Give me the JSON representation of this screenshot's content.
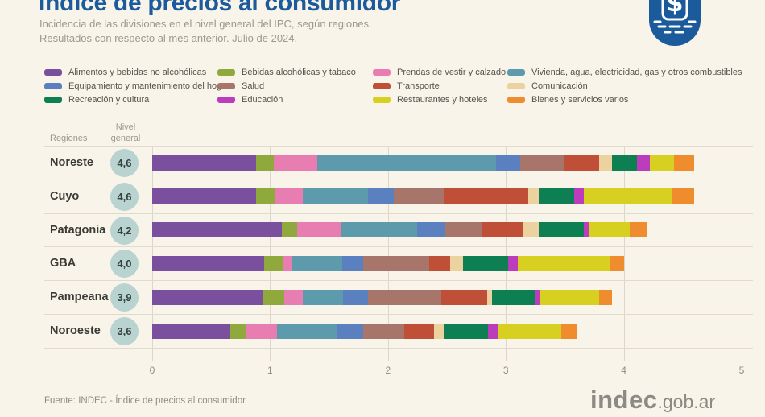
{
  "header": {
    "title": "Índice de precios al consumidor",
    "subtitle1": "Incidencia de las divisiones en el nivel general del IPC, según regiones.",
    "subtitle2": "Resultados con respecto al mes anterior. Julio de 2024.",
    "icon": "peso-receipt-icon",
    "title_color": "#1b5b9c"
  },
  "table": {
    "regions_header": "Regiones",
    "level_header": "Nivel general"
  },
  "chart_data": {
    "type": "bar",
    "stacked": true,
    "orientation": "horizontal",
    "categories": [
      "Noreste",
      "Cuyo",
      "Patagonia",
      "GBA",
      "Pampeana",
      "Noroeste"
    ],
    "general_level": [
      "4,6",
      "4,6",
      "4,2",
      "4,0",
      "3,9",
      "3,6"
    ],
    "xlim": [
      0,
      5
    ],
    "xticks": [
      "0",
      "1",
      "2",
      "3",
      "4",
      "5"
    ],
    "grid": true,
    "legend_position": "top",
    "series": [
      {
        "name": "Alimentos y bebidas no alcohólicas",
        "color": "#7a4f9d",
        "values": [
          0.88,
          0.88,
          1.1,
          0.95,
          0.94,
          0.66
        ]
      },
      {
        "name": "Bebidas alcohólicas y tabaco",
        "color": "#8fa93d",
        "values": [
          0.15,
          0.16,
          0.13,
          0.16,
          0.18,
          0.14
        ]
      },
      {
        "name": "Prendas de vestir y calzado",
        "color": "#e87db1",
        "values": [
          0.37,
          0.24,
          0.37,
          0.07,
          0.16,
          0.26
        ]
      },
      {
        "name": "Vivienda, agua, electricidad, gas y otros combustibles",
        "color": "#5d9bac",
        "values": [
          1.52,
          0.55,
          0.65,
          0.43,
          0.34,
          0.51
        ]
      },
      {
        "name": "Equipamiento y mantenimiento del hogar",
        "color": "#5b80c0",
        "values": [
          0.2,
          0.22,
          0.23,
          0.18,
          0.21,
          0.22
        ]
      },
      {
        "name": "Salud",
        "color": "#a8756b",
        "values": [
          0.38,
          0.42,
          0.32,
          0.56,
          0.62,
          0.35
        ]
      },
      {
        "name": "Transporte",
        "color": "#c04f37",
        "values": [
          0.29,
          0.72,
          0.35,
          0.18,
          0.39,
          0.25
        ]
      },
      {
        "name": "Comunicación",
        "color": "#ecd29e",
        "values": [
          0.11,
          0.09,
          0.13,
          0.11,
          0.04,
          0.08
        ]
      },
      {
        "name": "Recreación y cultura",
        "color": "#0e7e53",
        "values": [
          0.21,
          0.3,
          0.38,
          0.38,
          0.37,
          0.38
        ]
      },
      {
        "name": "Educación",
        "color": "#bb3dbc",
        "values": [
          0.11,
          0.08,
          0.05,
          0.08,
          0.04,
          0.08
        ]
      },
      {
        "name": "Restaurantes y hoteles",
        "color": "#d7d021",
        "values": [
          0.21,
          0.75,
          0.34,
          0.78,
          0.5,
          0.54
        ]
      },
      {
        "name": "Bienes y servicios varios",
        "color": "#ef8c2d",
        "values": [
          0.17,
          0.19,
          0.15,
          0.12,
          0.11,
          0.13
        ]
      }
    ]
  },
  "footer": {
    "source": "Fuente: INDEC - Índice de precios al consumidor",
    "logo_bold": "indec",
    "logo_rest": ".gob.ar"
  }
}
